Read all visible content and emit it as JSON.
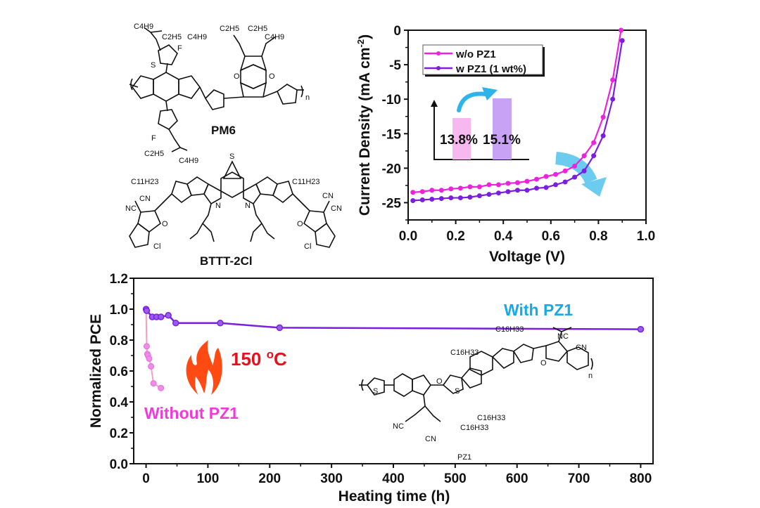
{
  "structures": {
    "donor_name": "PM6",
    "acceptor_name": "BTTT-2Cl",
    "additive_name": "PZ1",
    "pm6_labels": [
      "C4H9",
      "C2H5",
      "C4H9",
      "C2H5",
      "C2H5",
      "C4H9",
      "F",
      "F",
      "S",
      "O",
      "O",
      "n",
      "C2H5",
      "C4H9"
    ],
    "bttt_labels": [
      "C11H23",
      "C11H23",
      "CN",
      "NC",
      "CN",
      "CN",
      "Cl",
      "Cl",
      "N",
      "N",
      "S",
      "O",
      "O"
    ],
    "pz1_labels": [
      "C16H33",
      "C16H33",
      "C16H33",
      "C16H33",
      "NC",
      "CN",
      "NC",
      "CN",
      "O",
      "O",
      "S",
      "S",
      "n"
    ]
  },
  "colors": {
    "wo_pz1": "#ee22dd",
    "w_pz1": "#7a1fe0",
    "without_light": "#f08ce8",
    "arrow_blue": "#2fb4ea",
    "flame": "#ff4a14",
    "temp_red": "#e8101c",
    "with_label": "#1aa8e6",
    "without_label": "#f03ad8",
    "bar_pink": "#f7b8f0",
    "bar_purple": "#c7a2f5"
  },
  "chart_data": [
    {
      "type": "line",
      "title": "",
      "xlabel": "Voltage (V)",
      "ylabel": "Current Density (mA cm",
      "ylabel_sup": "-2",
      "ylabel_close": ")",
      "xlim": [
        0.0,
        1.0
      ],
      "ylim": [
        -27.5,
        0
      ],
      "xticks": [
        "0.0",
        "0.2",
        "0.4",
        "0.6",
        "0.8",
        "1.0"
      ],
      "yticks": [
        "0",
        "-5",
        "-10",
        "-15",
        "-20",
        "-25"
      ],
      "xtick_values": [
        0.0,
        0.2,
        0.4,
        0.6,
        0.8,
        1.0
      ],
      "ytick_values": [
        0,
        -5,
        -10,
        -15,
        -20,
        -25
      ],
      "legend_position": "top-left",
      "series": [
        {
          "name": "w/o PZ1",
          "x": [
            0.02,
            0.06,
            0.1,
            0.14,
            0.18,
            0.22,
            0.26,
            0.3,
            0.34,
            0.38,
            0.42,
            0.46,
            0.5,
            0.54,
            0.58,
            0.62,
            0.66,
            0.7,
            0.74,
            0.78,
            0.82,
            0.86,
            0.895
          ],
          "y": [
            -23.5,
            -23.4,
            -23.2,
            -23.2,
            -23.0,
            -22.9,
            -22.7,
            -22.7,
            -22.4,
            -22.4,
            -22.2,
            -22.1,
            -21.9,
            -21.6,
            -21.2,
            -20.9,
            -20.4,
            -19.7,
            -18.2,
            -16.3,
            -12.6,
            -7.2,
            0.0
          ]
        },
        {
          "name": "w PZ1 (1 wt%)",
          "x": [
            0.02,
            0.06,
            0.1,
            0.14,
            0.18,
            0.22,
            0.26,
            0.3,
            0.34,
            0.38,
            0.42,
            0.46,
            0.5,
            0.54,
            0.58,
            0.62,
            0.66,
            0.7,
            0.74,
            0.78,
            0.82,
            0.86,
            0.9
          ],
          "y": [
            -24.7,
            -24.6,
            -24.5,
            -24.4,
            -24.3,
            -24.3,
            -24.2,
            -24.0,
            -23.8,
            -23.6,
            -23.4,
            -23.2,
            -23.2,
            -22.9,
            -22.8,
            -22.4,
            -22.0,
            -21.3,
            -20.4,
            -18.2,
            -15.3,
            -10.0,
            -1.5
          ]
        }
      ],
      "inset": {
        "type": "bar",
        "categories": [
          "w/o PZ1",
          "w PZ1"
        ],
        "values": [
          13.8,
          15.1
        ],
        "labels": [
          "13.8%",
          "15.1%"
        ]
      }
    },
    {
      "type": "line",
      "title": "",
      "xlabel": "Heating time (h)",
      "ylabel": "Normalized PCE",
      "xlim": [
        -20,
        820
      ],
      "ylim": [
        0.0,
        1.2
      ],
      "xticks": [
        "0",
        "100",
        "200",
        "300",
        "400",
        "500",
        "600",
        "700",
        "800"
      ],
      "yticks": [
        "0.0",
        "0.2",
        "0.4",
        "0.6",
        "0.8",
        "1.0",
        "1.2"
      ],
      "xtick_values": [
        0,
        100,
        200,
        300,
        400,
        500,
        600,
        700,
        800
      ],
      "ytick_values": [
        0.0,
        0.2,
        0.4,
        0.6,
        0.8,
        1.0,
        1.2
      ],
      "series": [
        {
          "name": "With PZ1",
          "x": [
            0,
            1,
            10,
            17,
            24,
            36,
            48,
            120,
            216,
            800
          ],
          "y": [
            1.0,
            0.99,
            0.95,
            0.95,
            0.95,
            0.96,
            0.91,
            0.91,
            0.88,
            0.87
          ]
        },
        {
          "name": "Without PZ1",
          "x": [
            0,
            1,
            2,
            3,
            5,
            8,
            12,
            24
          ],
          "y": [
            1.0,
            0.76,
            0.71,
            0.7,
            0.68,
            0.63,
            0.52,
            0.49
          ]
        }
      ],
      "annotations": [
        "With PZ1",
        "Without PZ1",
        "150 ",
        "o",
        "C"
      ]
    }
  ]
}
